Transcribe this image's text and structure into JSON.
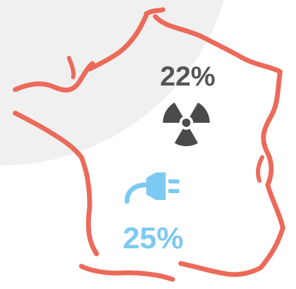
{
  "stats": [
    {
      "label": "22%"
    },
    {
      "label": "25%"
    }
  ]
}
